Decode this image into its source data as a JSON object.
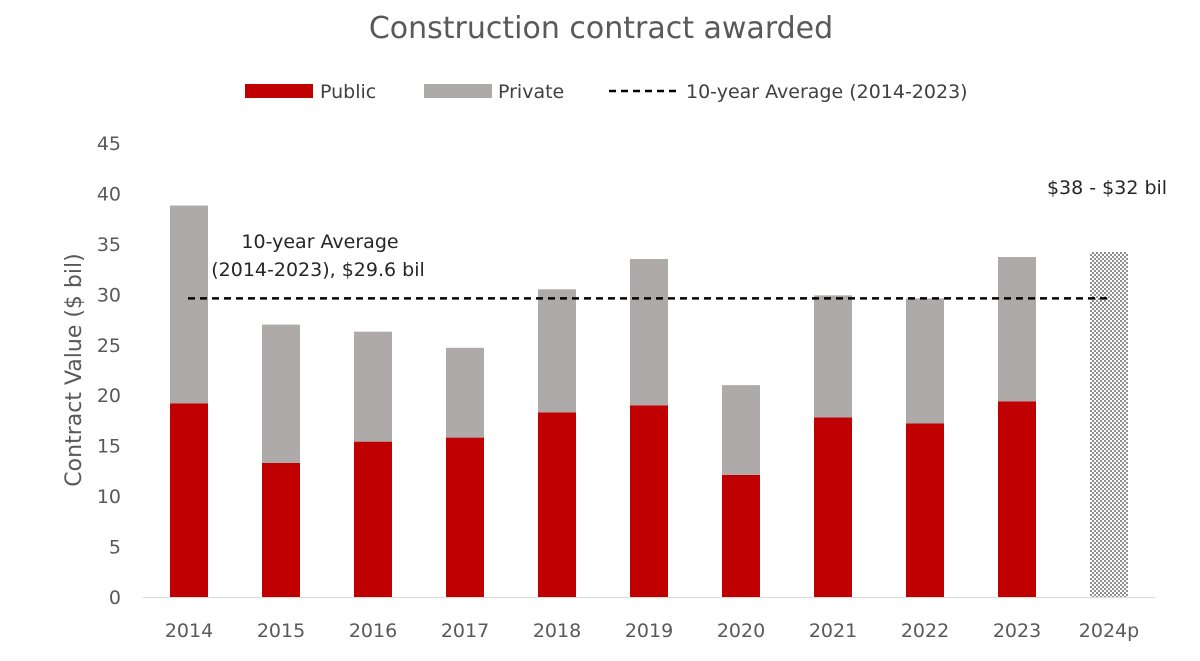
{
  "chart_data": {
    "type": "bar",
    "stacked": true,
    "title": "Construction contract awarded",
    "ylabel": "Contract Value ($ bil)",
    "xlabel": "",
    "ylim": [
      0,
      45
    ],
    "yticks": [
      0,
      5,
      10,
      15,
      20,
      25,
      30,
      35,
      40,
      45
    ],
    "grid": false,
    "legend_position": "top",
    "categories": [
      "2014",
      "2015",
      "2016",
      "2017",
      "2018",
      "2019",
      "2020",
      "2021",
      "2022",
      "2023",
      "2024p"
    ],
    "series": [
      {
        "name": "Public",
        "color": "#c00000",
        "values": [
          19.2,
          13.3,
          15.4,
          15.8,
          18.3,
          19.0,
          12.1,
          17.8,
          17.2,
          19.4,
          null
        ]
      },
      {
        "name": "Private",
        "color": "#aeaaaa",
        "values": [
          19.6,
          13.7,
          10.9,
          8.9,
          12.2,
          14.5,
          8.9,
          12.1,
          12.4,
          14.3,
          null
        ]
      }
    ],
    "projection": {
      "category": "2024p",
      "low": 32,
      "high": 38,
      "pattern": "dotted",
      "label": "$38 - $32 bil"
    },
    "reference_line": {
      "name": "10-year Average (2014-2023)",
      "value": 29.6,
      "style": "dashed",
      "annotation_line1": "10-year Average",
      "annotation_line2": "(2014-2023), $29.6 bil"
    }
  }
}
